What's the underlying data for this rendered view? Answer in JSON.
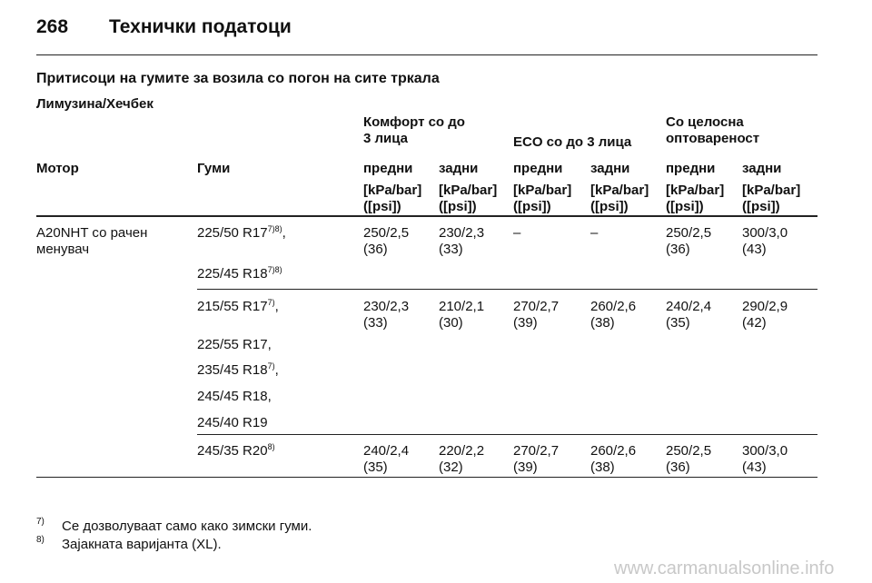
{
  "header": {
    "page": "268",
    "title": "Технички податоци"
  },
  "section_title": "Притисоци на гумите за возила со погон на сите тркала",
  "subtitle": "Лимузина/Хечбек",
  "table": {
    "groups": [
      [
        "Комфорт со до",
        "3 лица"
      ],
      [
        "ECO со до 3 лица"
      ],
      [
        "Со целосна",
        "оптовареност"
      ]
    ],
    "columns": [
      "Мотор",
      "Гуми",
      "предни",
      "задни",
      "предни",
      "задни",
      "предни",
      "задни"
    ],
    "units": [
      [
        "[kPa/bar]",
        "([psi])"
      ],
      [
        "[kPa/bar]",
        "([psi])"
      ],
      [
        "[kPa/bar]",
        "([psi])"
      ],
      [
        "[kPa/bar]",
        "([psi])"
      ],
      [
        "[kPa/bar]",
        "([psi])"
      ],
      [
        "[kPa/bar]",
        "([psi])"
      ]
    ],
    "rows": [
      {
        "engine": [
          "A20NHT со рачен",
          "менувач"
        ],
        "tyres": [
          {
            "size": "225/50 R17",
            "notes": "7)8)",
            "tail": ","
          },
          {
            "size": "225/45 R18",
            "notes": "7)8)"
          }
        ],
        "values": [
          [
            "250/2,5",
            "(36)"
          ],
          [
            "230/2,3",
            "(33)"
          ],
          [
            "–"
          ],
          [
            "–"
          ],
          [
            "250/2,5",
            "(36)"
          ],
          [
            "300/3,0",
            "(43)"
          ]
        ]
      },
      {
        "tyres": [
          {
            "size": "215/55 R17",
            "notes": "7)",
            "tail": ","
          },
          {
            "size": "225/55 R17,"
          },
          {
            "size": "235/45 R18",
            "notes": "7)",
            "tail": ","
          },
          {
            "size": "245/45 R18,"
          },
          {
            "size": "245/40 R19"
          }
        ],
        "values": [
          [
            "230/2,3",
            "(33)"
          ],
          [
            "210/2,1",
            "(30)"
          ],
          [
            "270/2,7",
            "(39)"
          ],
          [
            "260/2,6",
            "(38)"
          ],
          [
            "240/2,4",
            "(35)"
          ],
          [
            "290/2,9",
            "(42)"
          ]
        ]
      },
      {
        "tyres": [
          {
            "size": "245/35 R20",
            "notes": "8)"
          }
        ],
        "values": [
          [
            "240/2,4",
            "(35)"
          ],
          [
            "220/2,2",
            "(32)"
          ],
          [
            "270/2,7",
            "(39)"
          ],
          [
            "260/2,6",
            "(38)"
          ],
          [
            "250/2,5",
            "(36)"
          ],
          [
            "300/3,0",
            "(43)"
          ]
        ]
      }
    ]
  },
  "footnotes": [
    {
      "mark": "7)",
      "text": "Се дозволуваат само како зимски гуми."
    },
    {
      "mark": "8)",
      "text": "Зајакната варијанта (XL)."
    }
  ],
  "watermark": "www.carmanualsonline.info"
}
